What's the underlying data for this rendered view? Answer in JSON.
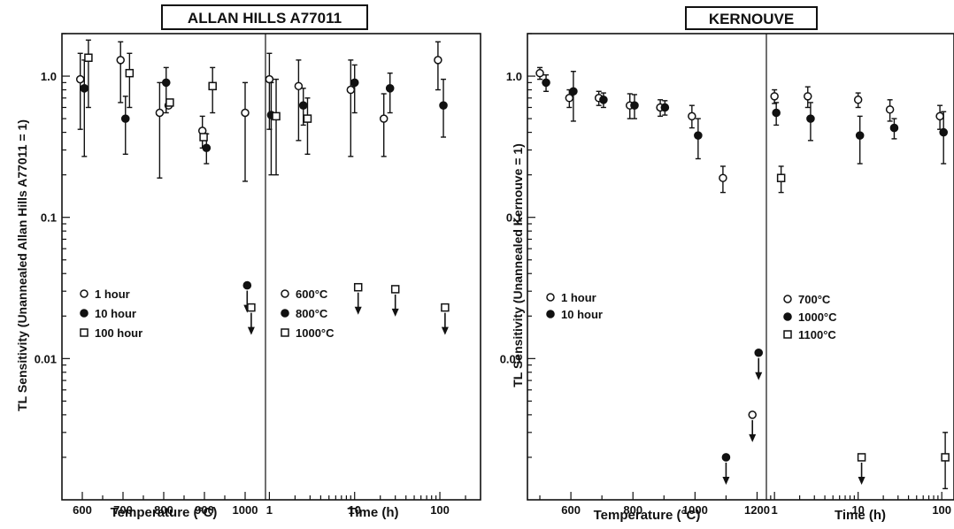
{
  "chart_data": [
    {
      "type": "scatter",
      "title": "ALLAN HILLS A77011",
      "ylabel": "TL  Sensitivity  (Unannealed Allan Hills A77011 = 1)",
      "yscale": "log",
      "ylim": [
        0.001,
        2.0
      ],
      "ytick_labels": [
        "1.0",
        "0.1",
        "0.01"
      ],
      "ytick_values": [
        1.0,
        0.1,
        0.01
      ],
      "panels": [
        {
          "xlabel": "Temperature (°C)",
          "xlim": [
            550,
            1050
          ],
          "xtick_labels": [
            "600",
            "700",
            "800",
            "900",
            "1000"
          ],
          "xtick_values": [
            600,
            700,
            800,
            900,
            1000
          ],
          "legend": [
            "1 hour",
            "10 hour",
            "100 hour"
          ],
          "series": [
            {
              "name": "1 hour",
              "marker": "open-circle",
              "points": [
                {
                  "x": 595,
                  "y": 0.95,
                  "lo": 0.42,
                  "hi": 1.45
                },
                {
                  "x": 694,
                  "y": 1.3,
                  "lo": 0.65,
                  "hi": 1.75
                },
                {
                  "x": 790,
                  "y": 0.55,
                  "lo": 0.19,
                  "hi": 0.9
                },
                {
                  "x": 812,
                  "y": 0.62
                },
                {
                  "x": 895,
                  "y": 0.41,
                  "lo": 0.31,
                  "hi": 0.52
                },
                {
                  "x": 1000,
                  "y": 0.55,
                  "lo": 0.18,
                  "hi": 0.9
                }
              ]
            },
            {
              "name": "10 hour",
              "marker": "filled-circle",
              "points": [
                {
                  "x": 605,
                  "y": 0.82,
                  "lo": 0.27,
                  "hi": 1.3
                },
                {
                  "x": 706,
                  "y": 0.5,
                  "lo": 0.28,
                  "hi": 0.72
                },
                {
                  "x": 806,
                  "y": 0.9,
                  "lo": 0.55,
                  "hi": 1.15
                },
                {
                  "x": 905,
                  "y": 0.31,
                  "lo": 0.24,
                  "hi": 0.39
                },
                {
                  "x": 1005,
                  "y": 0.033,
                  "upper_limit": true
                }
              ]
            },
            {
              "name": "100 hour",
              "marker": "open-square",
              "points": [
                {
                  "x": 615,
                  "y": 1.35,
                  "lo": 0.6,
                  "hi": 1.8
                },
                {
                  "x": 716,
                  "y": 1.05,
                  "lo": 0.6,
                  "hi": 1.45
                },
                {
                  "x": 815,
                  "y": 0.65
                },
                {
                  "x": 898,
                  "y": 0.37
                },
                {
                  "x": 920,
                  "y": 0.85,
                  "lo": 0.55,
                  "hi": 1.15
                },
                {
                  "x": 1015,
                  "y": 0.023,
                  "upper_limit": true
                }
              ]
            }
          ]
        },
        {
          "xlabel": "Time (h)",
          "xscale": "log",
          "xlim": [
            0.9,
            300
          ],
          "xtick_labels": [
            "1",
            "10",
            "100"
          ],
          "xtick_values": [
            1,
            10,
            100
          ],
          "legend": [
            "600°C",
            "800°C",
            "1000°C"
          ],
          "series": [
            {
              "name": "600°C",
              "marker": "open-circle",
              "points": [
                {
                  "x": 1,
                  "y": 0.95,
                  "lo": 0.42,
                  "hi": 1.45
                },
                {
                  "x": 2.2,
                  "y": 0.85,
                  "lo": 0.35,
                  "hi": 1.3
                },
                {
                  "x": 9,
                  "y": 0.8,
                  "lo": 0.27,
                  "hi": 1.3
                },
                {
                  "x": 22,
                  "y": 0.5,
                  "lo": 0.27,
                  "hi": 0.75
                },
                {
                  "x": 95,
                  "y": 1.3,
                  "lo": 0.8,
                  "hi": 1.75
                }
              ]
            },
            {
              "name": "800°C",
              "marker": "filled-circle",
              "points": [
                {
                  "x": 1.05,
                  "y": 0.53,
                  "lo": 0.2,
                  "hi": 0.9
                },
                {
                  "x": 2.5,
                  "y": 0.62,
                  "lo": 0.45,
                  "hi": 0.82
                },
                {
                  "x": 10,
                  "y": 0.9,
                  "lo": 0.55,
                  "hi": 1.2
                },
                {
                  "x": 26,
                  "y": 0.82,
                  "lo": 0.55,
                  "hi": 1.05
                },
                {
                  "x": 110,
                  "y": 0.62,
                  "lo": 0.37,
                  "hi": 0.95
                }
              ]
            },
            {
              "name": "1000°C",
              "marker": "open-square",
              "points": [
                {
                  "x": 1.2,
                  "y": 0.52,
                  "lo": 0.2,
                  "hi": 0.95
                },
                {
                  "x": 2.8,
                  "y": 0.5,
                  "lo": 0.28,
                  "hi": 0.7
                },
                {
                  "x": 11,
                  "y": 0.032,
                  "upper_limit": true
                },
                {
                  "x": 30,
                  "y": 0.031,
                  "upper_limit": true
                },
                {
                  "x": 115,
                  "y": 0.023,
                  "upper_limit": true
                }
              ]
            }
          ]
        }
      ]
    },
    {
      "type": "scatter",
      "title": "KERNOUVE",
      "ylabel": "TL Sensitivity (Unannealed Kernouve = 1)",
      "yscale": "log",
      "ylim": [
        0.001,
        2.0
      ],
      "ytick_labels": [
        "1.0",
        "0.1",
        "0.01"
      ],
      "ytick_values": [
        1.0,
        0.1,
        0.01
      ],
      "panels": [
        {
          "xlabel": "Temperature (°C)",
          "xlim": [
            460,
            1230
          ],
          "xtick_labels": [
            "600",
            "800",
            "1000",
            "1200"
          ],
          "xtick_values": [
            600,
            800,
            1000,
            1200
          ],
          "legend": [
            "1 hour",
            "10 hour"
          ],
          "series": [
            {
              "name": "1 hour",
              "marker": "open-circle",
              "points": [
                {
                  "x": 500,
                  "y": 1.05,
                  "lo": 0.95,
                  "hi": 1.15
                },
                {
                  "x": 595,
                  "y": 0.7,
                  "lo": 0.6,
                  "hi": 0.8
                },
                {
                  "x": 690,
                  "y": 0.7,
                  "lo": 0.62,
                  "hi": 0.78
                },
                {
                  "x": 790,
                  "y": 0.62,
                  "lo": 0.5,
                  "hi": 0.75
                },
                {
                  "x": 888,
                  "y": 0.6,
                  "lo": 0.52,
                  "hi": 0.68
                },
                {
                  "x": 990,
                  "y": 0.52,
                  "lo": 0.43,
                  "hi": 0.62
                },
                {
                  "x": 1090,
                  "y": 0.19,
                  "lo": 0.15,
                  "hi": 0.23
                },
                {
                  "x": 1185,
                  "y": 0.004,
                  "upper_limit": true
                }
              ]
            },
            {
              "name": "10 hour",
              "marker": "filled-circle",
              "points": [
                {
                  "x": 520,
                  "y": 0.9,
                  "lo": 0.78,
                  "hi": 1.02
                },
                {
                  "x": 608,
                  "y": 0.78,
                  "lo": 0.48,
                  "hi": 1.08
                },
                {
                  "x": 705,
                  "y": 0.68,
                  "lo": 0.6,
                  "hi": 0.76
                },
                {
                  "x": 805,
                  "y": 0.62,
                  "lo": 0.5,
                  "hi": 0.74
                },
                {
                  "x": 903,
                  "y": 0.6,
                  "lo": 0.53,
                  "hi": 0.67
                },
                {
                  "x": 1010,
                  "y": 0.38,
                  "lo": 0.26,
                  "hi": 0.5
                },
                {
                  "x": 1100,
                  "y": 0.002,
                  "upper_limit": true
                },
                {
                  "x": 1205,
                  "y": 0.011,
                  "upper_limit": true
                }
              ]
            }
          ]
        },
        {
          "xlabel": "Time (h)",
          "xscale": "log",
          "xlim": [
            0.8,
            140
          ],
          "xtick_labels": [
            "1",
            "10",
            "100"
          ],
          "xtick_values": [
            1,
            10,
            100
          ],
          "legend": [
            "700°C",
            "1000°C",
            "1100°C"
          ],
          "series": [
            {
              "name": "700°C",
              "marker": "open-circle",
              "points": [
                {
                  "x": 1,
                  "y": 0.72,
                  "lo": 0.64,
                  "hi": 0.8
                },
                {
                  "x": 2.5,
                  "y": 0.72,
                  "lo": 0.6,
                  "hi": 0.84
                },
                {
                  "x": 10,
                  "y": 0.68,
                  "lo": 0.6,
                  "hi": 0.76
                },
                {
                  "x": 24,
                  "y": 0.58,
                  "lo": 0.48,
                  "hi": 0.68
                },
                {
                  "x": 95,
                  "y": 0.52,
                  "lo": 0.42,
                  "hi": 0.62
                }
              ]
            },
            {
              "name": "1000°C",
              "marker": "filled-circle",
              "points": [
                {
                  "x": 1.05,
                  "y": 0.55,
                  "lo": 0.45,
                  "hi": 0.65
                },
                {
                  "x": 2.7,
                  "y": 0.5,
                  "lo": 0.35,
                  "hi": 0.65
                },
                {
                  "x": 10.5,
                  "y": 0.38,
                  "lo": 0.24,
                  "hi": 0.52
                },
                {
                  "x": 27,
                  "y": 0.43,
                  "lo": 0.36,
                  "hi": 0.5
                },
                {
                  "x": 105,
                  "y": 0.4,
                  "lo": 0.24,
                  "hi": 0.56
                }
              ]
            },
            {
              "name": "1100°C",
              "marker": "open-square",
              "points": [
                {
                  "x": 1.2,
                  "y": 0.19,
                  "lo": 0.15,
                  "hi": 0.23
                },
                {
                  "x": 11,
                  "y": 0.002,
                  "upper_limit": true
                },
                {
                  "x": 110,
                  "y": 0.002,
                  "lo": 0.0012,
                  "hi": 0.003
                }
              ]
            }
          ]
        }
      ]
    }
  ]
}
